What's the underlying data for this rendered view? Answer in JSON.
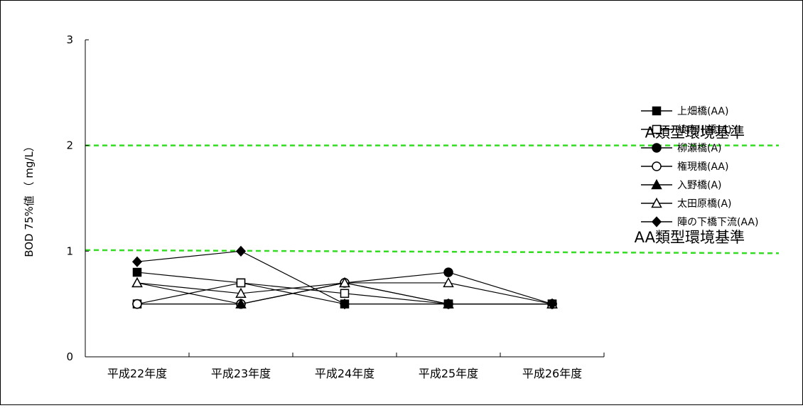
{
  "chart_data": {
    "type": "line",
    "title": "",
    "xlabel": "",
    "ylabel": "BOD 75%値 （ mg/L）",
    "ylim": [
      0,
      3
    ],
    "yticks": [
      0,
      1,
      2,
      3
    ],
    "grid": false,
    "legend_position": "right",
    "categories": [
      "平成22年度",
      "平成23年度",
      "平成24年度",
      "平成25年度",
      "平成26年度"
    ],
    "series": [
      {
        "name": "上畑橋(AA)",
        "marker": "square-filled",
        "values": [
          0.8,
          0.7,
          0.5,
          0.5,
          0.5
        ]
      },
      {
        "name": "綾南川橋(A)",
        "marker": "square-open",
        "values": [
          0.5,
          0.7,
          0.6,
          0.5,
          0.5
        ]
      },
      {
        "name": "柳瀬橋(A)",
        "marker": "circle-filled",
        "values": [
          0.5,
          0.5,
          0.7,
          0.8,
          0.5
        ]
      },
      {
        "name": "権現橋(AA)",
        "marker": "circle-open",
        "values": [
          0.5,
          0.5,
          0.7,
          0.5,
          0.5
        ]
      },
      {
        "name": "入野橋(A)",
        "marker": "triangle-filled",
        "values": [
          0.7,
          0.5,
          0.7,
          0.5,
          0.5
        ]
      },
      {
        "name": "太田原橋(A)",
        "marker": "triangle-open",
        "values": [
          0.7,
          0.6,
          0.7,
          0.7,
          0.5
        ]
      },
      {
        "name": "陣の下橋下流(AA)",
        "marker": "diamond-filled",
        "values": [
          0.9,
          1.0,
          0.5,
          0.5,
          0.5
        ]
      }
    ],
    "reference_lines": [
      {
        "label": "A類型環境基準",
        "y_start": 2.0,
        "y_end": 2.0,
        "color": "#33dd22"
      },
      {
        "label": "AA類型環境基準",
        "y_start": 1.01,
        "y_end": 0.98,
        "color": "#33dd22"
      }
    ]
  }
}
